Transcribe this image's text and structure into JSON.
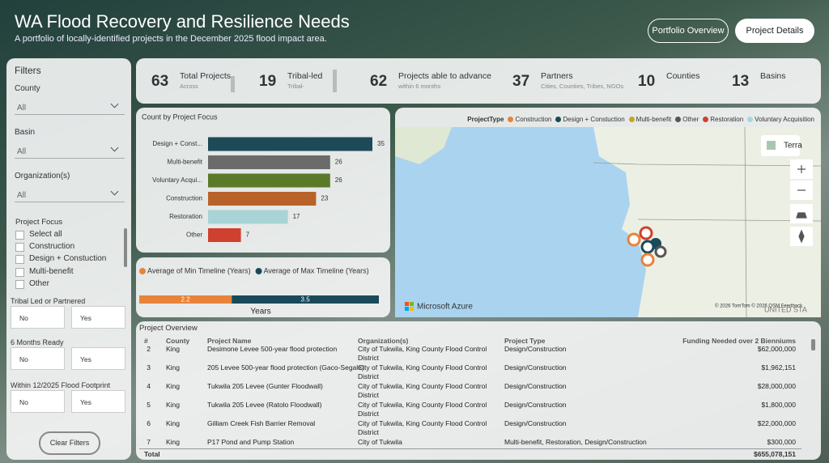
{
  "header": {
    "title": "WA Flood Recovery and Resilience Needs",
    "subtitle": "A portfolio of locally-identified projects in the December 2025 flood impact area.",
    "buttons": [
      "Portfolio Overview",
      "Project Details"
    ]
  },
  "filters": {
    "title": "Filters",
    "dropdowns": [
      {
        "label": "County",
        "value": "All"
      },
      {
        "label": "Basin",
        "value": "All"
      },
      {
        "label": "Organization(s)",
        "value": "All"
      }
    ],
    "project_focus": {
      "label": "Project Focus",
      "options": [
        "Select all",
        "Construction",
        "Design + Constuction",
        "Multi-benefit",
        "Other"
      ]
    },
    "toggles": [
      {
        "label": "Tribal Led or Partnered",
        "options": [
          "No",
          "Yes"
        ]
      },
      {
        "label": "6 Months Ready",
        "options": [
          "No",
          "Yes"
        ]
      },
      {
        "label": "Within 12/2025 Flood Footprint",
        "options": [
          "No",
          "Yes"
        ]
      }
    ],
    "clear": "Clear Filters"
  },
  "kpis": [
    {
      "value": "63",
      "label": "Total Projects",
      "sub": "Across"
    },
    {
      "value": "19",
      "label": "Tribal-led",
      "sub": "Tribal-"
    },
    {
      "value": "62",
      "label": "Projects able to advance",
      "sub": "within 6 months"
    },
    {
      "value": "37",
      "label": "Partners",
      "sub": "Cities, Counties, Tribes, NGOs"
    },
    {
      "value": "10",
      "label": "Counties"
    },
    {
      "value": "13",
      "label": "Basins"
    }
  ],
  "chart_data": [
    {
      "type": "hbar",
      "title": "Count by Project Focus",
      "categories": [
        "Design + Const...",
        "Multi-benefit",
        "Voluntary Acqui...",
        "Construction",
        "Restoration",
        "Other"
      ],
      "values": [
        35,
        26,
        26,
        23,
        17,
        7
      ],
      "colors": [
        "#1d4a57",
        "#6b6b6b",
        "#5a7a2a",
        "#b8622a",
        "#a9d4d6",
        "#d0402e"
      ]
    },
    {
      "type": "stacked_hbar",
      "x_label": "Years",
      "series": [
        {
          "name": "Average of Min Timeline (Years)",
          "color": "#e8833a",
          "values": [
            2.2
          ]
        },
        {
          "name": "Average of Max Timeline (Years)",
          "color": "#1a4a5a",
          "values": [
            3.5
          ]
        }
      ]
    }
  ],
  "map": {
    "legend_title": "ProjectType",
    "legend": [
      {
        "name": "Construction",
        "color": "#e8833a"
      },
      {
        "name": "Design + Constuction",
        "color": "#1a4a5a"
      },
      {
        "name": "Multi-benefit",
        "color": "#c9a227"
      },
      {
        "name": "Other",
        "color": "#555555"
      },
      {
        "name": "Restoration",
        "color": "#d0402e"
      },
      {
        "name": "Voluntary Acquisition",
        "color": "#a9d4e6"
      }
    ],
    "style_button": "Terra",
    "provider": "Microsoft Azure",
    "copyright": "© 2026 TomTom © 2026 OSM Feedback",
    "place_label": "UNITED STA"
  },
  "table": {
    "title": "Project Overview",
    "columns": [
      "#",
      "County",
      "Project Name",
      "Organization(s)",
      "Project Type",
      "Funding Needed over 2 Bienniums"
    ],
    "rows": [
      [
        "2",
        "King",
        "Desimone Levee 500-year flood protection",
        "City of Tukwila, King County Flood Control District",
        "Design/Construction",
        "$62,000,000"
      ],
      [
        "3",
        "King",
        "205 Levee 500-year flood protection (Gaco-Segale)",
        "City of Tukwila, King County Flood Control District",
        "Design/Construction",
        "$1,962,151"
      ],
      [
        "4",
        "King",
        "Tukwila 205 Levee (Gunter Floodwall)",
        "City of Tukwila, King County Flood Control District",
        "Design/Construction",
        "$28,000,000"
      ],
      [
        "5",
        "King",
        "Tukwila 205 Levee (Ratolo Floodwall)",
        "City of Tukwila, King County Flood Control District",
        "Design/Construction",
        "$1,800,000"
      ],
      [
        "6",
        "King",
        "Gilliam Creek Fish Barrier Removal",
        "City of Tukwila, King County Flood Control District",
        "Design/Construction",
        "$22,000,000"
      ],
      [
        "7",
        "King",
        "P17 Pond and Pump Station",
        "City of Tukwila",
        "Multi-benefit, Restoration, Design/Construction",
        "$300,000"
      ]
    ],
    "total": [
      "Total",
      "$655,078,151"
    ]
  }
}
